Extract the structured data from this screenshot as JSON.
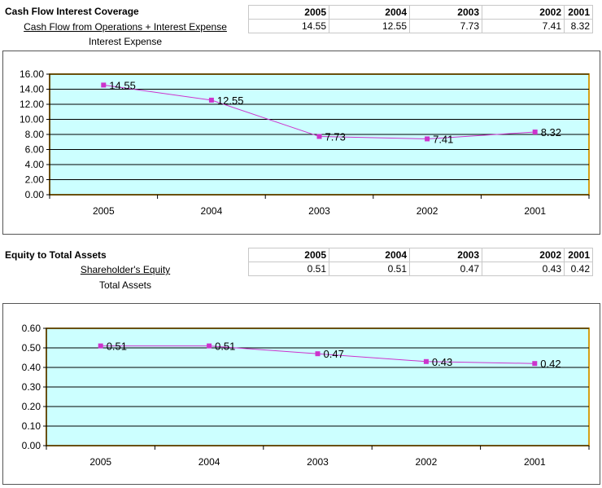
{
  "section1": {
    "title": "Cash Flow Interest Coverage",
    "numerator": "Cash Flow from Operations + Interest Expense",
    "denominator": "Interest Expense",
    "years": [
      "2005",
      "2004",
      "2003",
      "2002",
      "2001"
    ],
    "values": [
      "14.55",
      "12.55",
      "7.73",
      "7.41",
      "8.32"
    ]
  },
  "section2": {
    "title": "Equity to Total Assets",
    "numerator": "Shareholder's Equity",
    "denominator": "Total Assets",
    "years": [
      "2005",
      "2004",
      "2003",
      "2002",
      "2001"
    ],
    "values": [
      "0.51",
      "0.51",
      "0.47",
      "0.43",
      "0.42"
    ]
  },
  "colors": {
    "plot_bg": "#ccffff",
    "plot_border": "#d4a017",
    "line": "#cc33cc",
    "marker": "#cc33cc",
    "grid": "#000000"
  },
  "chart_data": [
    {
      "type": "line",
      "title": "",
      "categories": [
        "2005",
        "2004",
        "2003",
        "2002",
        "2001"
      ],
      "values": [
        14.55,
        12.55,
        7.73,
        7.41,
        8.32
      ],
      "data_labels": [
        "14.55",
        "12.55",
        "7.73",
        "7.41",
        "8.32"
      ],
      "yticks": [
        "0.00",
        "2.00",
        "4.00",
        "6.00",
        "8.00",
        "10.00",
        "12.00",
        "14.00",
        "16.00"
      ],
      "ylim": [
        0,
        16
      ],
      "xlabel": "",
      "ylabel": "",
      "grid": true
    },
    {
      "type": "line",
      "title": "",
      "categories": [
        "2005",
        "2004",
        "2003",
        "2002",
        "2001"
      ],
      "values": [
        0.51,
        0.51,
        0.47,
        0.43,
        0.42
      ],
      "data_labels": [
        "0.51",
        "0.51",
        "0.47",
        "0.43",
        "0.42"
      ],
      "yticks": [
        "0.00",
        "0.10",
        "0.20",
        "0.30",
        "0.40",
        "0.50",
        "0.60"
      ],
      "ylim": [
        0,
        0.6
      ],
      "xlabel": "",
      "ylabel": "",
      "grid": true
    }
  ]
}
